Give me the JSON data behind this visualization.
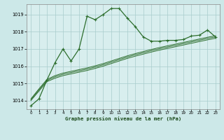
{
  "title": "Graphe pression niveau de la mer (hPa)",
  "background_color": "#cce8e8",
  "plot_bg_color": "#d8eeee",
  "grid_color": "#a8cccc",
  "line_color": "#2d6e2d",
  "x_ticks": [
    0,
    1,
    2,
    3,
    4,
    5,
    6,
    7,
    8,
    9,
    10,
    11,
    12,
    13,
    14,
    15,
    16,
    17,
    18,
    19,
    20,
    21,
    22,
    23
  ],
  "ylim": [
    1013.5,
    1019.6
  ],
  "yticks": [
    1014,
    1015,
    1016,
    1017,
    1018,
    1019
  ],
  "series1_y": [
    1013.7,
    1014.1,
    1015.2,
    1016.2,
    1017.0,
    1016.3,
    1017.0,
    1018.9,
    1018.7,
    1019.0,
    1019.35,
    1019.35,
    1018.8,
    1018.3,
    1017.7,
    1017.45,
    1017.45,
    1017.5,
    1017.5,
    1017.55,
    1017.75,
    1017.8,
    1018.1,
    1017.7
  ],
  "series2_y": [
    1014.0,
    1014.55,
    1015.1,
    1015.3,
    1015.45,
    1015.55,
    1015.65,
    1015.75,
    1015.87,
    1016.0,
    1016.15,
    1016.3,
    1016.45,
    1016.58,
    1016.7,
    1016.82,
    1016.93,
    1017.03,
    1017.13,
    1017.23,
    1017.33,
    1017.43,
    1017.53,
    1017.62
  ],
  "series3_y": [
    1014.05,
    1014.62,
    1015.17,
    1015.38,
    1015.53,
    1015.63,
    1015.73,
    1015.83,
    1015.95,
    1016.08,
    1016.23,
    1016.38,
    1016.53,
    1016.66,
    1016.78,
    1016.9,
    1017.01,
    1017.11,
    1017.21,
    1017.31,
    1017.41,
    1017.51,
    1017.61,
    1017.7
  ],
  "series4_y": [
    1014.1,
    1014.68,
    1015.23,
    1015.45,
    1015.6,
    1015.7,
    1015.8,
    1015.9,
    1016.02,
    1016.15,
    1016.3,
    1016.45,
    1016.6,
    1016.73,
    1016.85,
    1016.97,
    1017.08,
    1017.18,
    1017.28,
    1017.38,
    1017.48,
    1017.58,
    1017.68,
    1017.77
  ]
}
